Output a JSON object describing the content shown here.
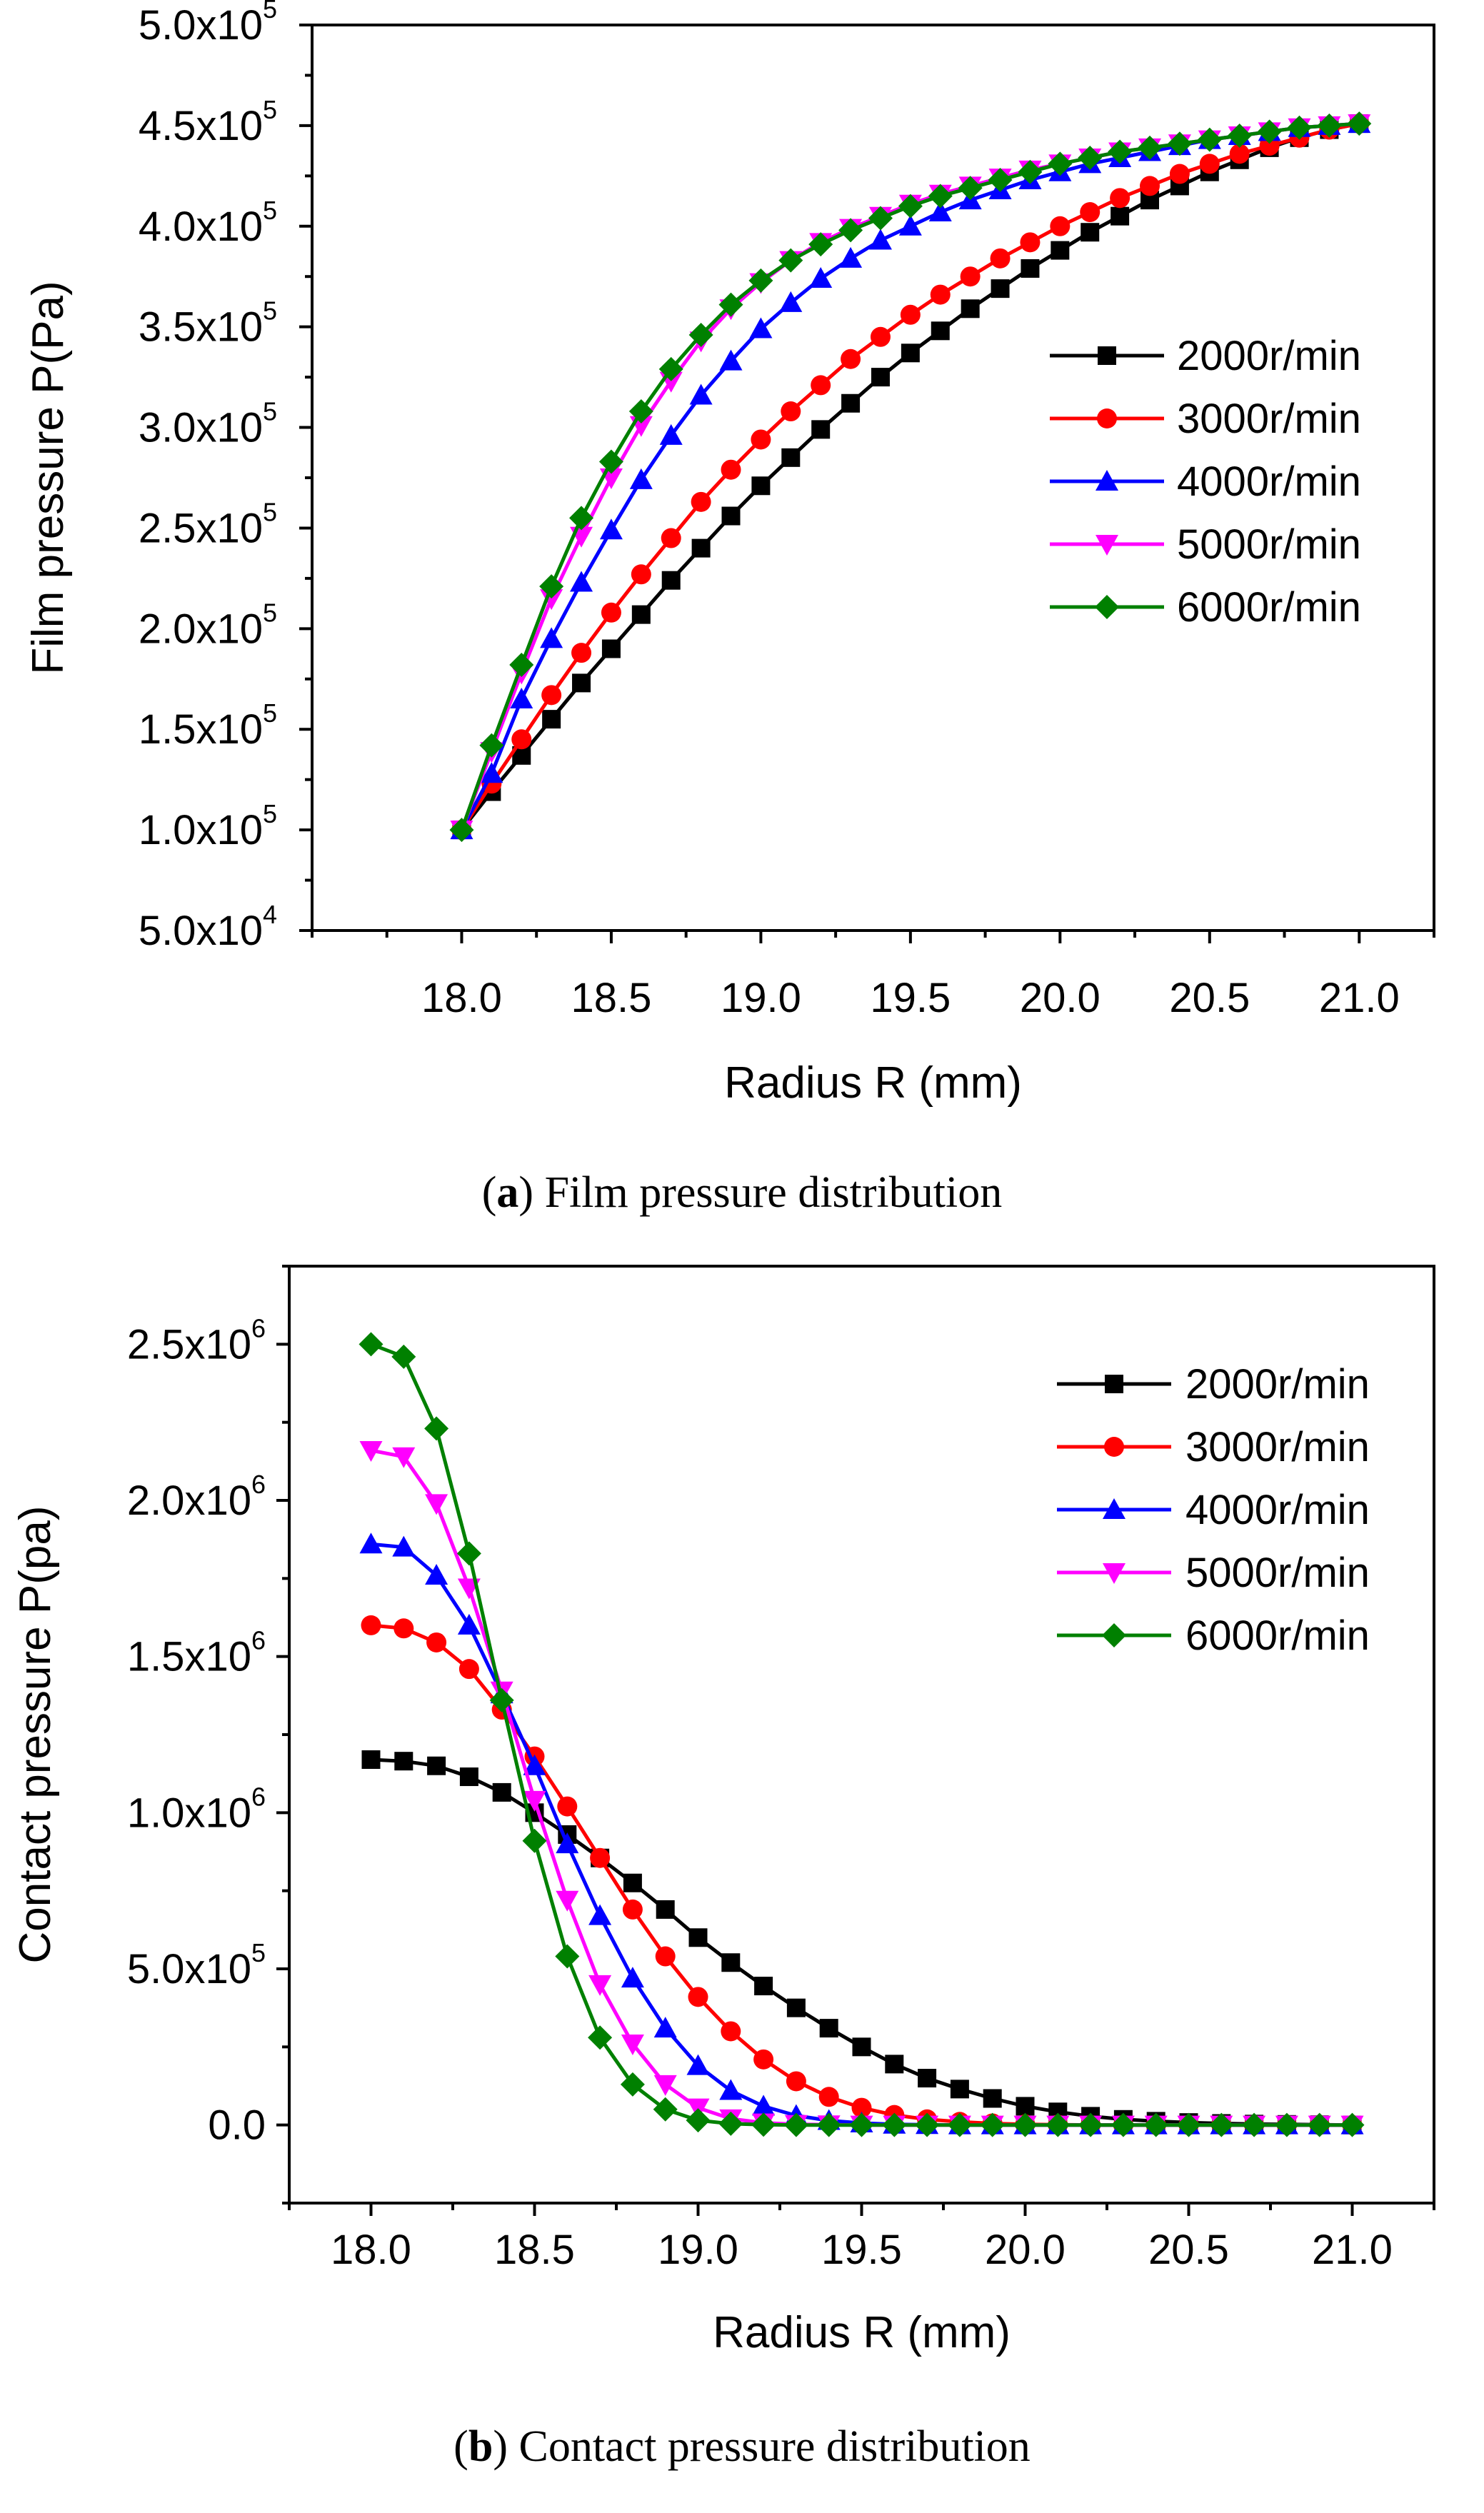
{
  "chart_data": [
    {
      "type": "line",
      "caption_tag": "a",
      "caption_text": "Film pressure distribution",
      "xlabel": "Radius R (mm)",
      "ylabel": "Film pressure P(Pa)",
      "xlim": [
        17.5,
        21.25
      ],
      "ylim": [
        50000,
        500000
      ],
      "xticks": [
        18.0,
        18.5,
        19.0,
        19.5,
        20.0,
        20.5,
        21.0
      ],
      "xtick_labels": [
        "18.0",
        "18.5",
        "19.0",
        "19.5",
        "20.0",
        "20.5",
        "21.0"
      ],
      "yticks": [
        {
          "value": 50000,
          "mant": "5.0x10",
          "exp": "4"
        },
        {
          "value": 100000,
          "mant": "1.0x10",
          "exp": "5"
        },
        {
          "value": 150000,
          "mant": "1.5x10",
          "exp": "5"
        },
        {
          "value": 200000,
          "mant": "2.0x10",
          "exp": "5"
        },
        {
          "value": 250000,
          "mant": "2.5x10",
          "exp": "5"
        },
        {
          "value": 300000,
          "mant": "3.0x10",
          "exp": "5"
        },
        {
          "value": 350000,
          "mant": "3.5x10",
          "exp": "5"
        },
        {
          "value": 400000,
          "mant": "4.0x10",
          "exp": "5"
        },
        {
          "value": 450000,
          "mant": "4.5x10",
          "exp": "5"
        },
        {
          "value": 500000,
          "mant": "5.0x10",
          "exp": "5"
        }
      ],
      "legend_position": "right-middle",
      "x": [
        18.0,
        18.1,
        18.2,
        18.3,
        18.4,
        18.5,
        18.6,
        18.7,
        18.8,
        18.9,
        19.0,
        19.1,
        19.2,
        19.3,
        19.4,
        19.5,
        19.6,
        19.7,
        19.8,
        19.9,
        20.0,
        20.1,
        20.2,
        20.3,
        20.4,
        20.5,
        20.6,
        20.7,
        20.8,
        20.9,
        21.0
      ],
      "series": [
        {
          "name": "2000r/min",
          "color": "#000000",
          "marker": "square",
          "values": [
            100000,
            119000,
            137000,
            155000,
            173000,
            190000,
            207000,
            224000,
            240000,
            256000,
            271000,
            285000,
            299000,
            312000,
            325000,
            337000,
            348000,
            359000,
            369000,
            379000,
            388000,
            397000,
            405000,
            413000,
            420000,
            427000,
            433000,
            439000,
            444000,
            448000,
            451000
          ]
        },
        {
          "name": "3000r/min",
          "color": "#ff0000",
          "marker": "circle",
          "values": [
            100000,
            123000,
            145000,
            167000,
            188000,
            208000,
            227000,
            245000,
            263000,
            279000,
            294000,
            308000,
            321000,
            334000,
            345000,
            356000,
            366000,
            375000,
            384000,
            392000,
            400000,
            407000,
            414000,
            420000,
            426000,
            431000,
            436000,
            440000,
            444000,
            448000,
            451000
          ]
        },
        {
          "name": "4000r/min",
          "color": "#0000ff",
          "marker": "triangle-up",
          "values": [
            100000,
            128000,
            165000,
            195000,
            223000,
            249000,
            274000,
            296000,
            316000,
            333000,
            349000,
            362000,
            374000,
            384000,
            393000,
            400000,
            407000,
            413000,
            418000,
            423000,
            427000,
            431000,
            434000,
            437000,
            440000,
            443000,
            445000,
            447000,
            449000,
            450000,
            451000
          ]
        },
        {
          "name": "5000r/min",
          "color": "#ff00ff",
          "marker": "triangle-down",
          "values": [
            100000,
            139000,
            178000,
            215000,
            246000,
            275000,
            301000,
            323000,
            343000,
            359000,
            372000,
            383000,
            392000,
            399000,
            405000,
            411000,
            416000,
            420000,
            424000,
            428000,
            431000,
            434000,
            437000,
            439000,
            441000,
            443000,
            445000,
            447000,
            449000,
            450000,
            451000
          ]
        },
        {
          "name": "6000r/min",
          "color": "#008000",
          "marker": "diamond",
          "values": [
            100000,
            142000,
            182000,
            221000,
            255000,
            283000,
            308000,
            329000,
            346000,
            361000,
            373000,
            383000,
            391000,
            398000,
            404000,
            410000,
            415000,
            419000,
            423000,
            427000,
            431000,
            434000,
            437000,
            439000,
            441000,
            443000,
            445000,
            447000,
            449000,
            450000,
            451000
          ]
        }
      ]
    },
    {
      "type": "line",
      "caption_tag": "b",
      "caption_text": "Contact pressure distribution",
      "xlabel": "Radius R (mm)",
      "ylabel": "Contact pressure P(pa)",
      "xlim": [
        17.75,
        21.25
      ],
      "ylim": [
        -250000,
        2750000
      ],
      "xticks": [
        18.0,
        18.5,
        19.0,
        19.5,
        20.0,
        20.5,
        21.0
      ],
      "xtick_labels": [
        "18.0",
        "18.5",
        "19.0",
        "19.5",
        "20.0",
        "20.5",
        "21.0"
      ],
      "yticks": [
        {
          "value": 0,
          "mant": "0.0",
          "exp": ""
        },
        {
          "value": 500000,
          "mant": "5.0x10",
          "exp": "5"
        },
        {
          "value": 1000000,
          "mant": "1.0x10",
          "exp": "6"
        },
        {
          "value": 1500000,
          "mant": "1.5x10",
          "exp": "6"
        },
        {
          "value": 2000000,
          "mant": "2.0x10",
          "exp": "6"
        },
        {
          "value": 2500000,
          "mant": "2.5x10",
          "exp": "6"
        }
      ],
      "legend_position": "top-right",
      "x": [
        18.0,
        18.1,
        18.2,
        18.3,
        18.4,
        18.5,
        18.6,
        18.7,
        18.8,
        18.9,
        19.0,
        19.1,
        19.2,
        19.3,
        19.4,
        19.5,
        19.6,
        19.7,
        19.8,
        19.9,
        20.0,
        20.1,
        20.2,
        20.3,
        20.4,
        20.5,
        20.6,
        20.7,
        20.8,
        20.9,
        21.0
      ],
      "series": [
        {
          "name": "2000r/min",
          "color": "#000000",
          "marker": "square",
          "values": [
            1170000,
            1165000,
            1150000,
            1115000,
            1065000,
            1000000,
            930000,
            855000,
            775000,
            690000,
            600000,
            520000,
            445000,
            375000,
            310000,
            250000,
            195000,
            150000,
            115000,
            85000,
            60000,
            42000,
            28000,
            18000,
            12000,
            8000,
            5000,
            3000,
            2000,
            1000,
            0
          ]
        },
        {
          "name": "3000r/min",
          "color": "#ff0000",
          "marker": "circle",
          "values": [
            1600000,
            1590000,
            1545000,
            1460000,
            1330000,
            1180000,
            1020000,
            855000,
            690000,
            540000,
            410000,
            300000,
            210000,
            140000,
            90000,
            55000,
            32000,
            18000,
            10000,
            5000,
            2000,
            1000,
            0,
            0,
            0,
            0,
            0,
            0,
            0,
            0,
            0
          ]
        },
        {
          "name": "4000r/min",
          "color": "#0000ff",
          "marker": "triangle-up",
          "values": [
            1860000,
            1850000,
            1760000,
            1600000,
            1380000,
            1150000,
            900000,
            670000,
            470000,
            310000,
            190000,
            110000,
            60000,
            30000,
            14000,
            6000,
            2000,
            1000,
            0,
            0,
            0,
            0,
            0,
            0,
            0,
            0,
            0,
            0,
            0,
            0,
            0
          ]
        },
        {
          "name": "5000r/min",
          "color": "#ff00ff",
          "marker": "triangle-down",
          "values": [
            2160000,
            2140000,
            1990000,
            1720000,
            1390000,
            1040000,
            720000,
            450000,
            260000,
            130000,
            55000,
            20000,
            7000,
            2000,
            1000,
            0,
            0,
            0,
            0,
            0,
            0,
            0,
            0,
            0,
            0,
            0,
            0,
            0,
            0,
            0,
            0
          ]
        },
        {
          "name": "6000r/min",
          "color": "#008000",
          "marker": "diamond",
          "values": [
            2500000,
            2460000,
            2230000,
            1830000,
            1360000,
            910000,
            540000,
            280000,
            130000,
            50000,
            15000,
            4000,
            1000,
            0,
            0,
            0,
            0,
            0,
            0,
            0,
            0,
            0,
            0,
            0,
            0,
            0,
            0,
            0,
            0,
            0,
            0
          ]
        }
      ]
    }
  ]
}
